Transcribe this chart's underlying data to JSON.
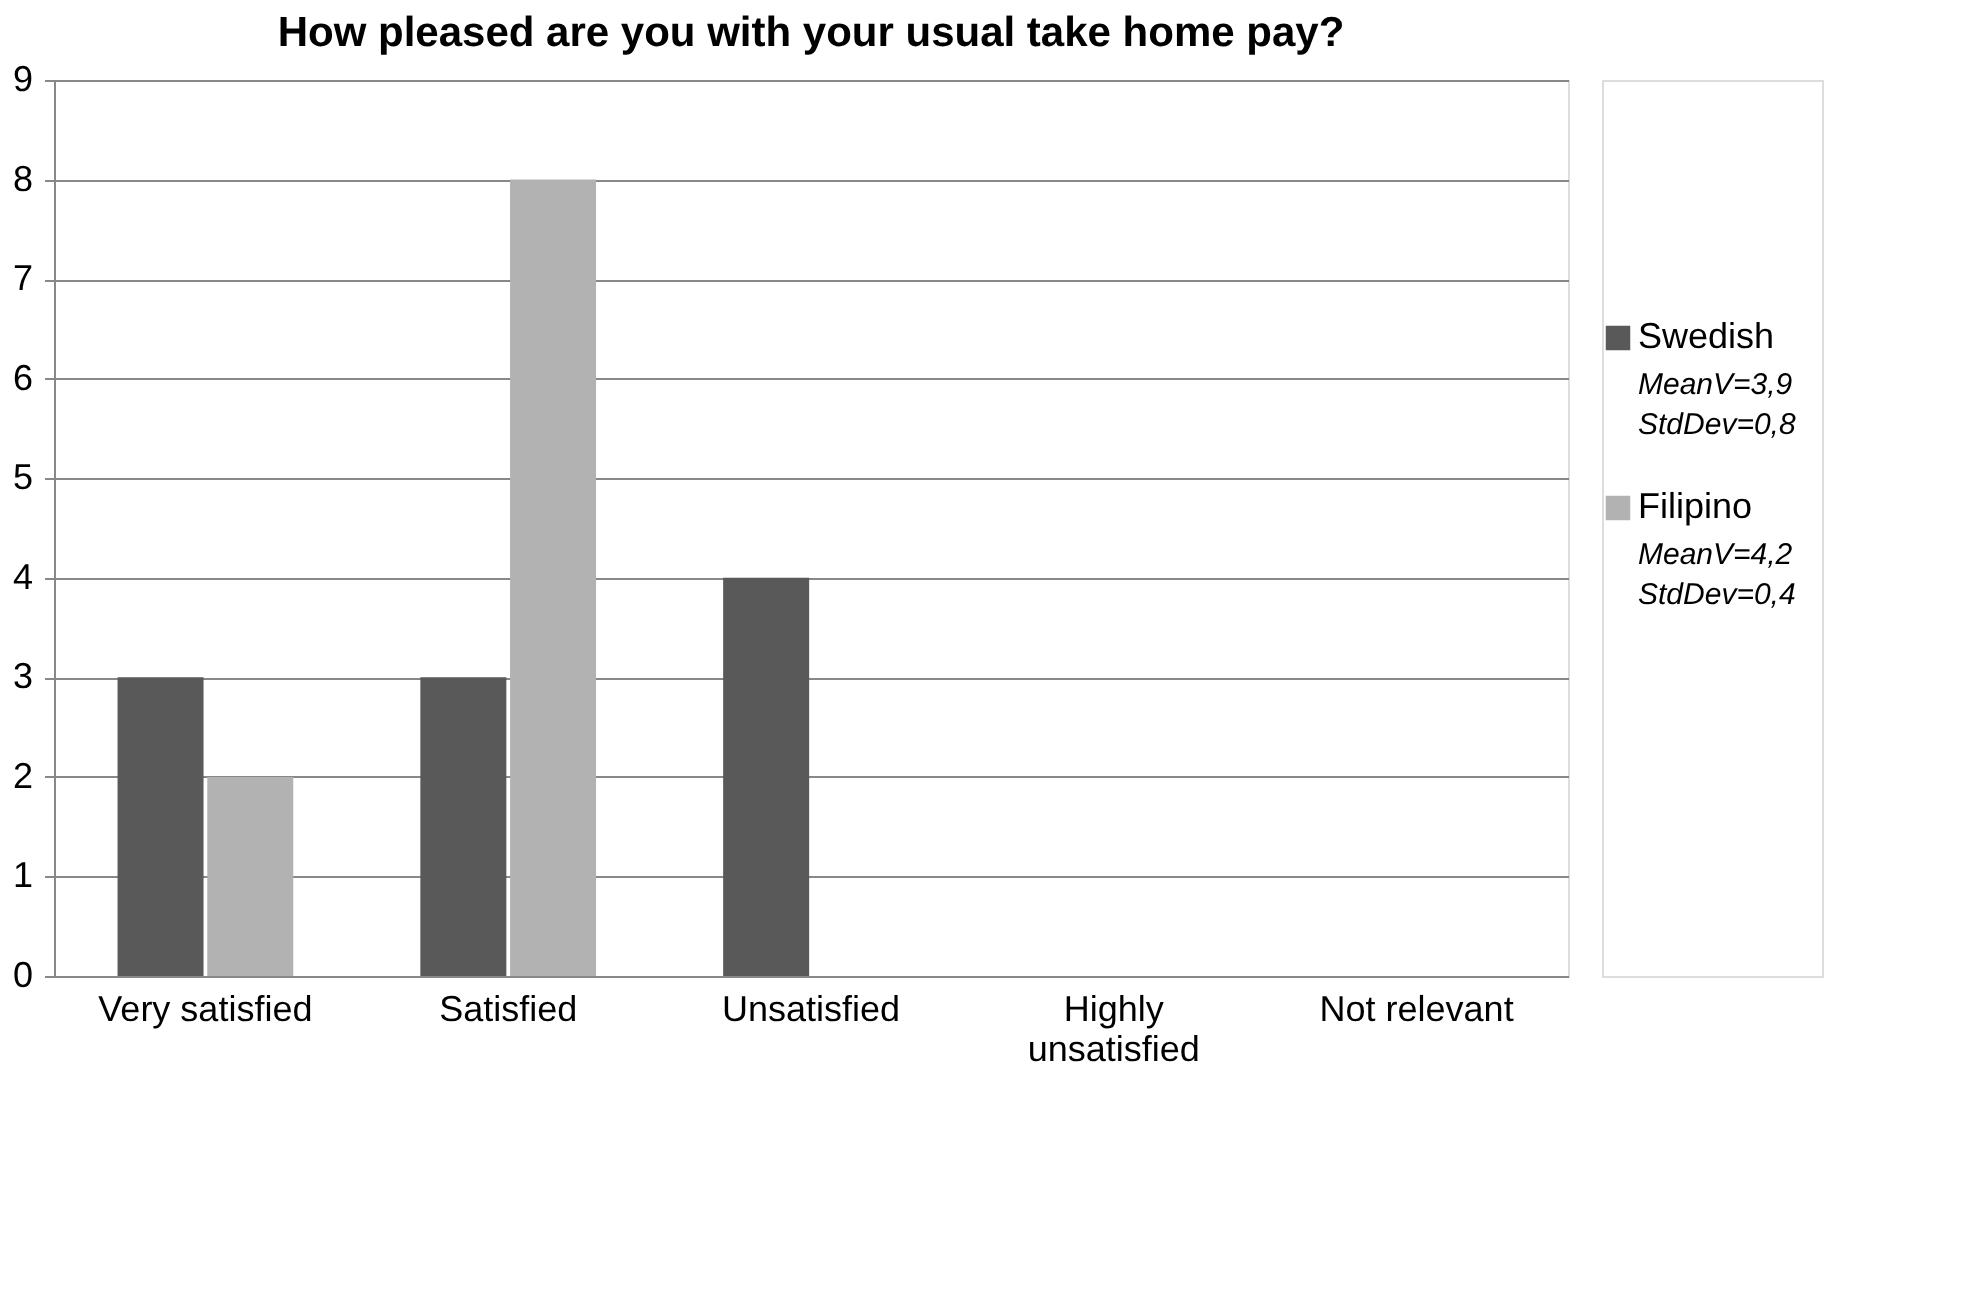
{
  "chart_data": {
    "type": "bar",
    "title": "How pleased are you with your usual take home pay?",
    "categories": [
      "Very satisfied",
      "Satisfied",
      "Unsatisfied",
      "Highly unsatisfied",
      "Not relevant"
    ],
    "series": [
      {
        "name": "Swedish",
        "color": "#595959",
        "values": [
          3,
          3,
          4,
          0,
          0
        ]
      },
      {
        "name": "Filipino",
        "color": "#b2b2b2",
        "values": [
          2,
          8,
          0,
          0,
          0
        ]
      }
    ],
    "ylim": [
      0,
      9
    ],
    "yticks": [
      0,
      1,
      2,
      3,
      4,
      5,
      6,
      7,
      8,
      9
    ],
    "grid": "y",
    "legend": "right",
    "annotations": [
      "MeanV=3,9",
      "StdDev=0,8",
      "MeanV=4,2",
      "StdDev=0,4"
    ]
  }
}
